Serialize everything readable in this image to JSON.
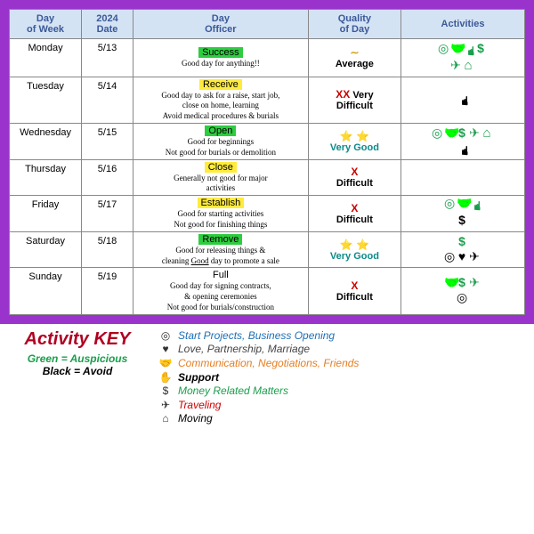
{
  "headers": [
    "Day of Week",
    "2024 Date",
    "Day Officer",
    "Quality of Day",
    "Activities"
  ],
  "column_widths": [
    "14%",
    "10%",
    "34%",
    "18%",
    "24%"
  ],
  "quality_colors": {
    "average": "#d4a017",
    "verydiff": "#cc0000",
    "verygood": "#0b8a8a",
    "difficult": "#cc0000"
  },
  "rows": [
    {
      "dow": "Monday",
      "date": "5/13",
      "officer": {
        "name": "Success",
        "hl": "hl-green",
        "desc": [
          "Good day for anything!!"
        ]
      },
      "quality": {
        "sym": "∼",
        "label": "Average",
        "cls": "average",
        "symcolor": "#d4a017",
        "labelcolor": "#000"
      },
      "act": [
        [
          "target-g",
          "handshake-g",
          "hand-g",
          "dollar-g"
        ],
        [
          "plane-g",
          "house-g"
        ]
      ]
    },
    {
      "dow": "Tuesday",
      "date": "5/14",
      "officer": {
        "name": "Receive",
        "hl": "hl-yellow",
        "desc": [
          "Good day to ask for a raise, start job,",
          "close on home, learning",
          "Avoid medical procedures & burials"
        ]
      },
      "quality": {
        "sym": "XX",
        "label": "Very Difficult",
        "cls": "verydiff",
        "symcolor": "#cc0000",
        "labelcolor": "#000",
        "twoLine": true
      },
      "act": [
        [
          "hand-b"
        ]
      ]
    },
    {
      "dow": "Wednesday",
      "date": "5/15",
      "officer": {
        "name": "Open",
        "hl": "hl-green",
        "desc": [
          "Good for beginnings",
          "Not good for burials or demolition"
        ]
      },
      "quality": {
        "sym": "⭐ ⭐",
        "label": "Very Good",
        "cls": "verygood",
        "symcolor": "#d4a017",
        "labelcolor": "#0b8a8a"
      },
      "act": [
        [
          "target-g",
          "handshake-g",
          "dollar-g",
          "plane-g",
          "house-g"
        ],
        [
          "hand-b"
        ]
      ]
    },
    {
      "dow": "Thursday",
      "date": "5/16",
      "officer": {
        "name": "Close",
        "hl": "hl-yellow",
        "desc": [
          "Generally not good for major",
          "activities"
        ]
      },
      "quality": {
        "sym": "X",
        "label": "Difficult",
        "cls": "difficult",
        "symcolor": "#cc0000",
        "labelcolor": "#000"
      },
      "act": []
    },
    {
      "dow": "Friday",
      "date": "5/17",
      "officer": {
        "name": "Establish",
        "hl": "hl-yellow",
        "desc": [
          "Good for starting activities",
          "Not good for finishing things"
        ]
      },
      "quality": {
        "sym": "X",
        "label": "Difficult",
        "cls": "difficult",
        "symcolor": "#cc0000",
        "labelcolor": "#000"
      },
      "act": [
        [
          "target-g",
          "handshake-g",
          "hand-g"
        ],
        [
          "dollar-b"
        ]
      ]
    },
    {
      "dow": "Saturday",
      "date": "5/18",
      "officer": {
        "name": "Remove",
        "hl": "hl-green",
        "desc": [
          "Good for releasing things &",
          "cleaning <u>Good</u> day to promote a sale"
        ]
      },
      "quality": {
        "sym": "⭐ ⭐",
        "label": "Very Good",
        "cls": "verygood",
        "symcolor": "#d4a017",
        "labelcolor": "#0b8a8a"
      },
      "act": [
        [
          "dollar-g"
        ],
        [
          "target-b",
          "heart-b",
          "plane-b"
        ]
      ]
    },
    {
      "dow": "Sunday",
      "date": "5/19",
      "officer": {
        "name": "Full",
        "hl": "",
        "desc": [
          "Good day for signing contracts,",
          "& opening ceremonies",
          "Not good for burials/construction"
        ]
      },
      "quality": {
        "sym": "X",
        "label": "Difficult",
        "cls": "difficult",
        "symcolor": "#cc0000",
        "labelcolor": "#000"
      },
      "act": [
        [
          "handshake-g",
          "dollar-g",
          "plane-g"
        ],
        [
          "target-b"
        ]
      ]
    }
  ],
  "icons": {
    "target": "◎",
    "handshake": "🤝",
    "hand": "✋",
    "dollar": "$",
    "plane": "✈",
    "house": "⌂",
    "heart": "♥"
  },
  "key": {
    "title": "Activity KEY",
    "auspicious": "Green = Auspicious",
    "avoid": "Black = Avoid",
    "items": [
      {
        "icon": "◎",
        "text": "Start Projects, Business Opening",
        "color": "#1f6fb3"
      },
      {
        "icon": "♥",
        "text": "Love, Partnership, Marriage",
        "color": "#444"
      },
      {
        "icon": "🤝",
        "text": "Communication, Negotiations, Friends",
        "color": "#e67e22"
      },
      {
        "icon": "✋",
        "text": "Support",
        "color": "#000",
        "bold": true
      },
      {
        "icon": "$",
        "text": "Money Related Matters",
        "color": "#1a9e4b"
      },
      {
        "icon": "✈",
        "text": "Traveling",
        "color": "#cc0000"
      },
      {
        "icon": "⌂",
        "text": "Moving",
        "color": "#000"
      }
    ]
  }
}
